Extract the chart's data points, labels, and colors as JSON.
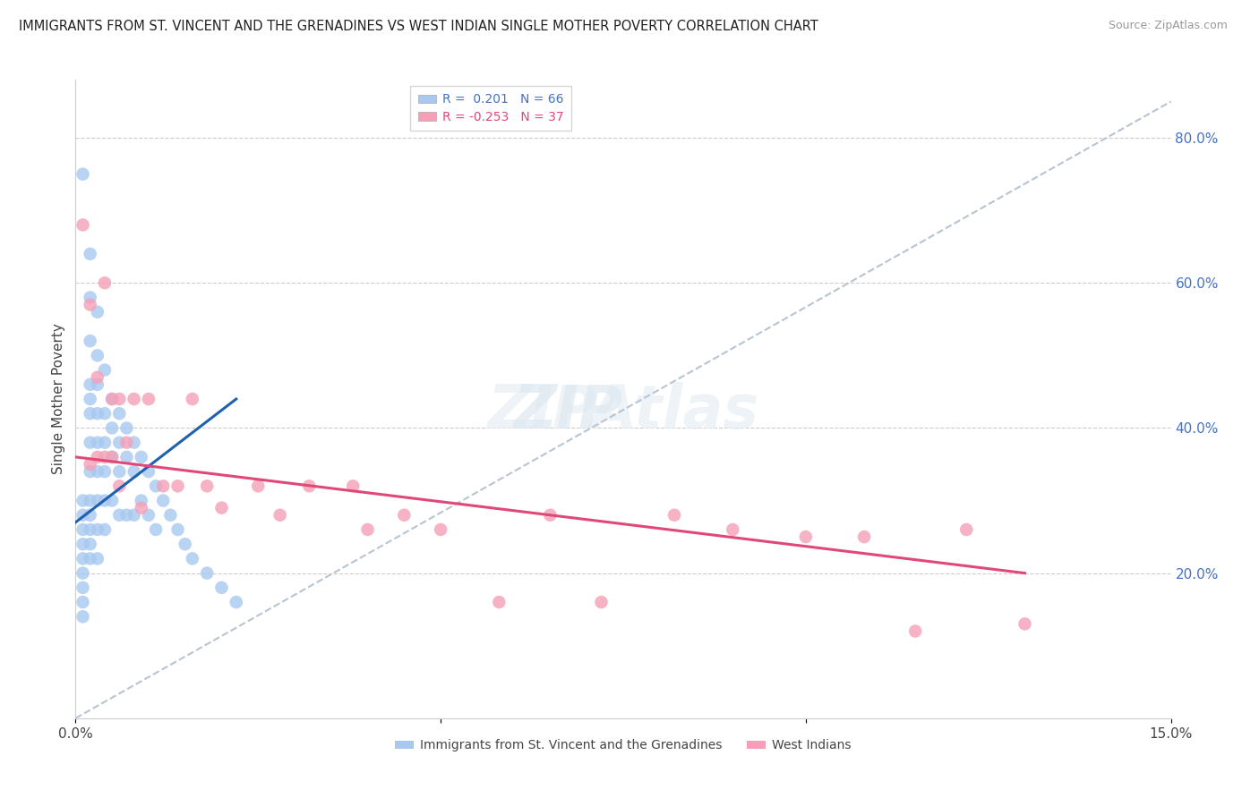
{
  "title": "IMMIGRANTS FROM ST. VINCENT AND THE GRENADINES VS WEST INDIAN SINGLE MOTHER POVERTY CORRELATION CHART",
  "source": "Source: ZipAtlas.com",
  "ylabel": "Single Mother Poverty",
  "xlim": [
    0.0,
    0.15
  ],
  "ylim": [
    0.0,
    0.88
  ],
  "xticks": [
    0.0,
    0.05,
    0.1,
    0.15
  ],
  "xticklabels": [
    "0.0%",
    "",
    "",
    "15.0%"
  ],
  "yticks_right": [
    0.2,
    0.4,
    0.6,
    0.8
  ],
  "yticklabels_right": [
    "20.0%",
    "40.0%",
    "60.0%",
    "80.0%"
  ],
  "blue_R": 0.201,
  "blue_N": 66,
  "pink_R": -0.253,
  "pink_N": 37,
  "blue_color": "#a8c8f0",
  "pink_color": "#f5a0b8",
  "blue_line_color": "#2060b0",
  "pink_line_color": "#e04878",
  "gray_dash_color": "#b8c4d0",
  "legend_label_blue": "Immigrants from St. Vincent and the Grenadines",
  "legend_label_pink": "West Indians",
  "blue_scatter_x": [
    0.001,
    0.001,
    0.001,
    0.001,
    0.001,
    0.001,
    0.001,
    0.001,
    0.001,
    0.001,
    0.002,
    0.002,
    0.002,
    0.002,
    0.002,
    0.002,
    0.002,
    0.002,
    0.002,
    0.002,
    0.002,
    0.002,
    0.002,
    0.003,
    0.003,
    0.003,
    0.003,
    0.003,
    0.003,
    0.003,
    0.003,
    0.003,
    0.004,
    0.004,
    0.004,
    0.004,
    0.004,
    0.004,
    0.005,
    0.005,
    0.005,
    0.005,
    0.006,
    0.006,
    0.006,
    0.006,
    0.007,
    0.007,
    0.007,
    0.008,
    0.008,
    0.008,
    0.009,
    0.009,
    0.01,
    0.01,
    0.011,
    0.011,
    0.012,
    0.013,
    0.014,
    0.015,
    0.016,
    0.018,
    0.02,
    0.022
  ],
  "blue_scatter_y": [
    0.75,
    0.3,
    0.28,
    0.26,
    0.24,
    0.22,
    0.2,
    0.18,
    0.16,
    0.14,
    0.64,
    0.58,
    0.52,
    0.46,
    0.44,
    0.42,
    0.38,
    0.34,
    0.3,
    0.28,
    0.26,
    0.24,
    0.22,
    0.56,
    0.5,
    0.46,
    0.42,
    0.38,
    0.34,
    0.3,
    0.26,
    0.22,
    0.48,
    0.42,
    0.38,
    0.34,
    0.3,
    0.26,
    0.44,
    0.4,
    0.36,
    0.3,
    0.42,
    0.38,
    0.34,
    0.28,
    0.4,
    0.36,
    0.28,
    0.38,
    0.34,
    0.28,
    0.36,
    0.3,
    0.34,
    0.28,
    0.32,
    0.26,
    0.3,
    0.28,
    0.26,
    0.24,
    0.22,
    0.2,
    0.18,
    0.16
  ],
  "pink_scatter_x": [
    0.001,
    0.002,
    0.002,
    0.003,
    0.003,
    0.004,
    0.004,
    0.005,
    0.005,
    0.006,
    0.006,
    0.007,
    0.008,
    0.009,
    0.01,
    0.012,
    0.014,
    0.016,
    0.018,
    0.02,
    0.025,
    0.028,
    0.032,
    0.038,
    0.04,
    0.045,
    0.05,
    0.058,
    0.065,
    0.072,
    0.082,
    0.09,
    0.1,
    0.108,
    0.115,
    0.122,
    0.13
  ],
  "pink_scatter_y": [
    0.68,
    0.57,
    0.35,
    0.47,
    0.36,
    0.6,
    0.36,
    0.44,
    0.36,
    0.44,
    0.32,
    0.38,
    0.44,
    0.29,
    0.44,
    0.32,
    0.32,
    0.44,
    0.32,
    0.29,
    0.32,
    0.28,
    0.32,
    0.32,
    0.26,
    0.28,
    0.26,
    0.16,
    0.28,
    0.16,
    0.28,
    0.26,
    0.25,
    0.25,
    0.12,
    0.26,
    0.13
  ],
  "blue_trend_x": [
    0.0,
    0.022
  ],
  "blue_trend_y": [
    0.27,
    0.44
  ],
  "pink_trend_x": [
    0.0,
    0.13
  ],
  "pink_trend_y": [
    0.36,
    0.2
  ],
  "gray_line_x": [
    0.0,
    0.15
  ],
  "gray_line_y": [
    0.0,
    0.85
  ]
}
